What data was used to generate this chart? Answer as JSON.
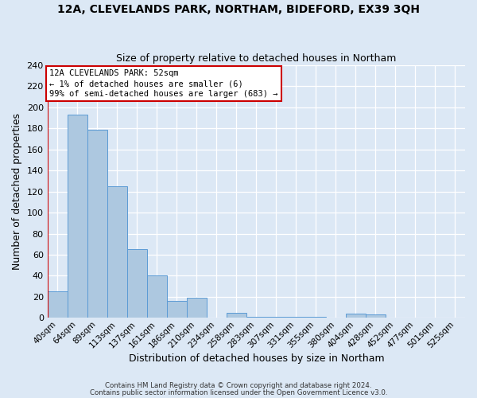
{
  "title": "12A, CLEVELANDS PARK, NORTHAM, BIDEFORD, EX39 3QH",
  "subtitle": "Size of property relative to detached houses in Northam",
  "xlabel": "Distribution of detached houses by size in Northam",
  "ylabel": "Number of detached properties",
  "bin_labels": [
    "40sqm",
    "64sqm",
    "89sqm",
    "113sqm",
    "137sqm",
    "161sqm",
    "186sqm",
    "210sqm",
    "234sqm",
    "258sqm",
    "283sqm",
    "307sqm",
    "331sqm",
    "355sqm",
    "380sqm",
    "404sqm",
    "428sqm",
    "452sqm",
    "477sqm",
    "501sqm",
    "525sqm"
  ],
  "bar_values": [
    25,
    193,
    179,
    125,
    65,
    40,
    16,
    19,
    0,
    5,
    1,
    1,
    1,
    1,
    0,
    4,
    3,
    0,
    0,
    0,
    0
  ],
  "bar_color": "#adc8e0",
  "bar_edge_color": "#5b9bd5",
  "ylim": [
    0,
    240
  ],
  "yticks": [
    0,
    20,
    40,
    60,
    80,
    100,
    120,
    140,
    160,
    180,
    200,
    220,
    240
  ],
  "annotation_box_text": "12A CLEVELANDS PARK: 52sqm\n← 1% of detached houses are smaller (6)\n99% of semi-detached houses are larger (683) →",
  "annotation_box_color": "#ffffff",
  "annotation_box_edge_color": "#cc0000",
  "footer_line1": "Contains HM Land Registry data © Crown copyright and database right 2024.",
  "footer_line2": "Contains public sector information licensed under the Open Government Licence v3.0.",
  "background_color": "#dce8f5",
  "plot_background_color": "#dce8f5",
  "title_fontsize": 10,
  "subtitle_fontsize": 9,
  "ylabel_fontsize": 9,
  "xlabel_fontsize": 9
}
